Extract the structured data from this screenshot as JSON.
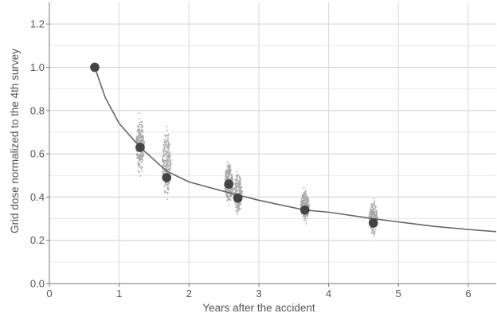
{
  "chart_data": {
    "type": "scatter",
    "title": "",
    "xlabel": "Years after the accident",
    "ylabel": "Grid dose normalized to the 4th survey",
    "xlim": [
      0,
      6.4
    ],
    "ylim": [
      0,
      1.3
    ],
    "x_ticks": [
      0,
      1,
      2,
      3,
      4,
      5,
      6
    ],
    "y_ticks": [
      0.0,
      0.2,
      0.4,
      0.6,
      0.8,
      1.0,
      1.2
    ],
    "x_tick_labels": [
      "0",
      "1",
      "2",
      "3",
      "4",
      "5",
      "6"
    ],
    "y_tick_labels": [
      "0.0",
      "0.2",
      "0.4",
      "0.6",
      "0.8",
      "1.0",
      "1.2"
    ],
    "grid": true,
    "legend": "none",
    "series": [
      {
        "kind": "mean-points",
        "color": "#444444",
        "points": [
          {
            "x": 0.65,
            "y": 1.0
          },
          {
            "x": 1.3,
            "y": 0.63
          },
          {
            "x": 1.68,
            "y": 0.49
          },
          {
            "x": 2.57,
            "y": 0.46
          },
          {
            "x": 2.7,
            "y": 0.395
          },
          {
            "x": 3.66,
            "y": 0.34
          },
          {
            "x": 4.64,
            "y": 0.28
          }
        ]
      },
      {
        "kind": "scatter-clusters",
        "color": "#a8a8a8",
        "clusters": [
          {
            "x": 1.3,
            "ymin": 0.48,
            "ymax": 0.8
          },
          {
            "x": 1.68,
            "ymin": 0.36,
            "ymax": 0.75
          },
          {
            "x": 2.57,
            "ymin": 0.34,
            "ymax": 0.58
          },
          {
            "x": 2.7,
            "ymin": 0.3,
            "ymax": 0.54
          },
          {
            "x": 3.66,
            "ymin": 0.26,
            "ymax": 0.46
          },
          {
            "x": 4.64,
            "ymin": 0.21,
            "ymax": 0.4
          }
        ]
      },
      {
        "kind": "fit-curve",
        "color": "#666666",
        "x": [
          0.65,
          0.8,
          1.0,
          1.3,
          1.68,
          2.0,
          2.57,
          3.0,
          3.66,
          4.0,
          4.64,
          5.0,
          5.5,
          6.0,
          6.4
        ],
        "y": [
          1.0,
          0.86,
          0.74,
          0.63,
          0.52,
          0.47,
          0.42,
          0.385,
          0.34,
          0.33,
          0.3,
          0.285,
          0.265,
          0.25,
          0.24
        ]
      }
    ]
  }
}
